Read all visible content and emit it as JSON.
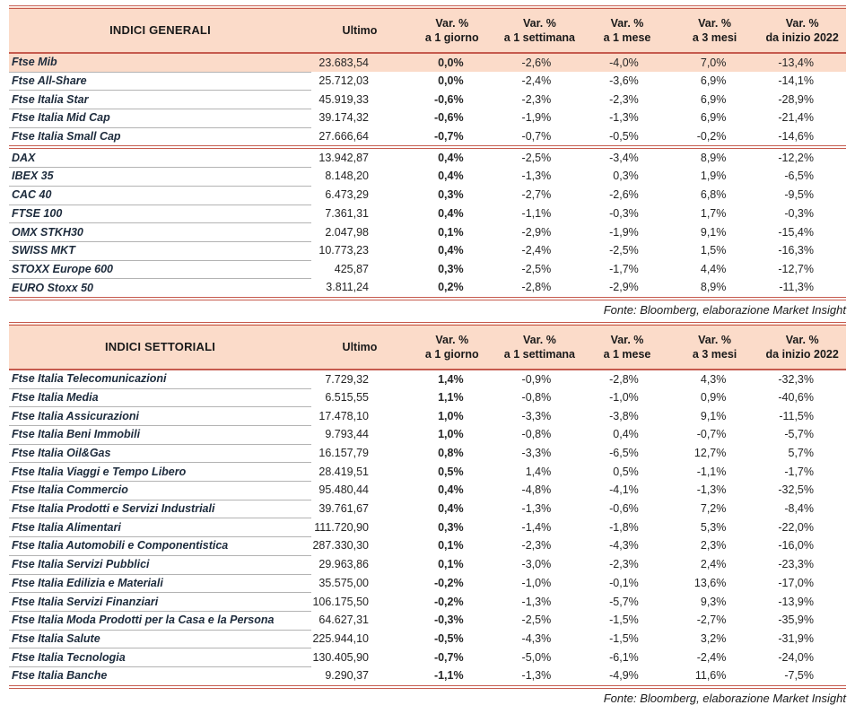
{
  "colors": {
    "accent": "#c65b4e",
    "header_bg": "#fbdbc9",
    "highlight_bg": "#fbdbc9",
    "name_underline": "#b3b3b3",
    "text": "#252525",
    "name_text": "#1d2b3c"
  },
  "general": {
    "title": "INDICI GENERALI",
    "columns": [
      {
        "line1": "Ultimo",
        "line2": ""
      },
      {
        "line1": "Var. %",
        "line2": "a 1 giorno"
      },
      {
        "line1": "Var. %",
        "line2": "a 1 settimana"
      },
      {
        "line1": "Var. %",
        "line2": "a 1 mese"
      },
      {
        "line1": "Var. %",
        "line2": "a 3 mesi"
      },
      {
        "line1": "Var. %",
        "line2": "da inizio 2022"
      }
    ],
    "rows": [
      {
        "name": "Ftse Mib",
        "values": [
          "23.683,54",
          "0,0%",
          "-2,6%",
          "-4,0%",
          "7,0%",
          "-13,4%"
        ],
        "highlight": true
      },
      {
        "name": "Ftse All-Share",
        "values": [
          "25.712,03",
          "0,0%",
          "-2,4%",
          "-3,6%",
          "6,9%",
          "-14,1%"
        ]
      },
      {
        "name": "Ftse Italia Star",
        "values": [
          "45.919,33",
          "-0,6%",
          "-2,3%",
          "-2,3%",
          "6,9%",
          "-28,9%"
        ]
      },
      {
        "name": "Ftse Italia Mid Cap",
        "values": [
          "39.174,32",
          "-0,6%",
          "-1,9%",
          "-1,3%",
          "6,9%",
          "-21,4%"
        ]
      },
      {
        "name": "Ftse Italia Small Cap",
        "values": [
          "27.666,64",
          "-0,7%",
          "-0,7%",
          "-0,5%",
          "-0,2%",
          "-14,6%"
        ],
        "separator_after": true
      },
      {
        "name": "DAX",
        "values": [
          "13.942,87",
          "0,4%",
          "-2,5%",
          "-3,4%",
          "8,9%",
          "-12,2%"
        ]
      },
      {
        "name": "IBEX 35",
        "values": [
          "8.148,20",
          "0,4%",
          "-1,3%",
          "0,3%",
          "1,9%",
          "-6,5%"
        ]
      },
      {
        "name": "CAC 40",
        "values": [
          "6.473,29",
          "0,3%",
          "-2,7%",
          "-2,6%",
          "6,8%",
          "-9,5%"
        ]
      },
      {
        "name": "FTSE 100",
        "values": [
          "7.361,31",
          "0,4%",
          "-1,1%",
          "-0,3%",
          "1,7%",
          "-0,3%"
        ]
      },
      {
        "name": "OMX STKH30",
        "values": [
          "2.047,98",
          "0,1%",
          "-2,9%",
          "-1,9%",
          "9,1%",
          "-15,4%"
        ]
      },
      {
        "name": "SWISS MKT",
        "values": [
          "10.773,23",
          "0,4%",
          "-2,4%",
          "-2,5%",
          "1,5%",
          "-16,3%"
        ]
      },
      {
        "name": "STOXX Europe 600",
        "values": [
          "425,87",
          "0,3%",
          "-2,5%",
          "-1,7%",
          "4,4%",
          "-12,7%"
        ]
      },
      {
        "name": "EURO Stoxx 50",
        "values": [
          "3.811,24",
          "0,2%",
          "-2,8%",
          "-2,9%",
          "8,9%",
          "-11,3%"
        ]
      }
    ],
    "source": "Fonte: Bloomberg, elaborazione Market Insight"
  },
  "sector": {
    "title": "INDICI SETTORIALI",
    "columns": [
      {
        "line1": "Ultimo",
        "line2": ""
      },
      {
        "line1": "Var. %",
        "line2": "a 1 giorno"
      },
      {
        "line1": "Var. %",
        "line2": "a 1 settimana"
      },
      {
        "line1": "Var. %",
        "line2": "a 1 mese"
      },
      {
        "line1": "Var. %",
        "line2": "a 3 mesi"
      },
      {
        "line1": "Var. %",
        "line2": "da inizio 2022"
      }
    ],
    "rows": [
      {
        "name": "Ftse Italia Telecomunicazioni",
        "values": [
          "7.729,32",
          "1,4%",
          "-0,9%",
          "-2,8%",
          "4,3%",
          "-32,3%"
        ]
      },
      {
        "name": "Ftse Italia Media",
        "values": [
          "6.515,55",
          "1,1%",
          "-0,8%",
          "-1,0%",
          "0,9%",
          "-40,6%"
        ]
      },
      {
        "name": "Ftse Italia Assicurazioni",
        "values": [
          "17.478,10",
          "1,0%",
          "-3,3%",
          "-3,8%",
          "9,1%",
          "-11,5%"
        ]
      },
      {
        "name": "Ftse Italia Beni Immobili",
        "values": [
          "9.793,44",
          "1,0%",
          "-0,8%",
          "0,4%",
          "-0,7%",
          "-5,7%"
        ]
      },
      {
        "name": "Ftse Italia Oil&Gas",
        "values": [
          "16.157,79",
          "0,8%",
          "-3,3%",
          "-6,5%",
          "12,7%",
          "5,7%"
        ]
      },
      {
        "name": "Ftse Italia Viaggi e Tempo Libero",
        "values": [
          "28.419,51",
          "0,5%",
          "1,4%",
          "0,5%",
          "-1,1%",
          "-1,7%"
        ]
      },
      {
        "name": "Ftse Italia Commercio",
        "values": [
          "95.480,44",
          "0,4%",
          "-4,8%",
          "-4,1%",
          "-1,3%",
          "-32,5%"
        ]
      },
      {
        "name": "Ftse Italia Prodotti e Servizi Industriali",
        "values": [
          "39.761,67",
          "0,4%",
          "-1,3%",
          "-0,6%",
          "7,2%",
          "-8,4%"
        ]
      },
      {
        "name": "Ftse Italia Alimentari",
        "values": [
          "111.720,90",
          "0,3%",
          "-1,4%",
          "-1,8%",
          "5,3%",
          "-22,0%"
        ]
      },
      {
        "name": "Ftse Italia Automobili e Componentistica",
        "values": [
          "287.330,30",
          "0,1%",
          "-2,3%",
          "-4,3%",
          "2,3%",
          "-16,0%"
        ]
      },
      {
        "name": "Ftse Italia Servizi Pubblici",
        "values": [
          "29.963,86",
          "0,1%",
          "-3,0%",
          "-2,3%",
          "2,4%",
          "-23,3%"
        ]
      },
      {
        "name": "Ftse Italia Edilizia e Materiali",
        "values": [
          "35.575,00",
          "-0,2%",
          "-1,0%",
          "-0,1%",
          "13,6%",
          "-17,0%"
        ]
      },
      {
        "name": "Ftse Italia Servizi Finanziari",
        "values": [
          "106.175,50",
          "-0,2%",
          "-1,3%",
          "-5,7%",
          "9,3%",
          "-13,9%"
        ]
      },
      {
        "name": "Ftse Italia Moda Prodotti per la Casa e la Persona",
        "values": [
          "64.627,31",
          "-0,3%",
          "-2,5%",
          "-1,5%",
          "-2,7%",
          "-35,9%"
        ]
      },
      {
        "name": "Ftse Italia Salute",
        "values": [
          "225.944,10",
          "-0,5%",
          "-4,3%",
          "-1,5%",
          "3,2%",
          "-31,9%"
        ]
      },
      {
        "name": "Ftse Italia Tecnologia",
        "values": [
          "130.405,90",
          "-0,7%",
          "-5,0%",
          "-6,1%",
          "-2,4%",
          "-24,0%"
        ]
      },
      {
        "name": "Ftse Italia Banche",
        "values": [
          "9.290,37",
          "-1,1%",
          "-1,3%",
          "-4,9%",
          "11,6%",
          "-7,5%"
        ]
      }
    ],
    "source": "Fonte: Bloomberg, elaborazione Market Insight"
  }
}
